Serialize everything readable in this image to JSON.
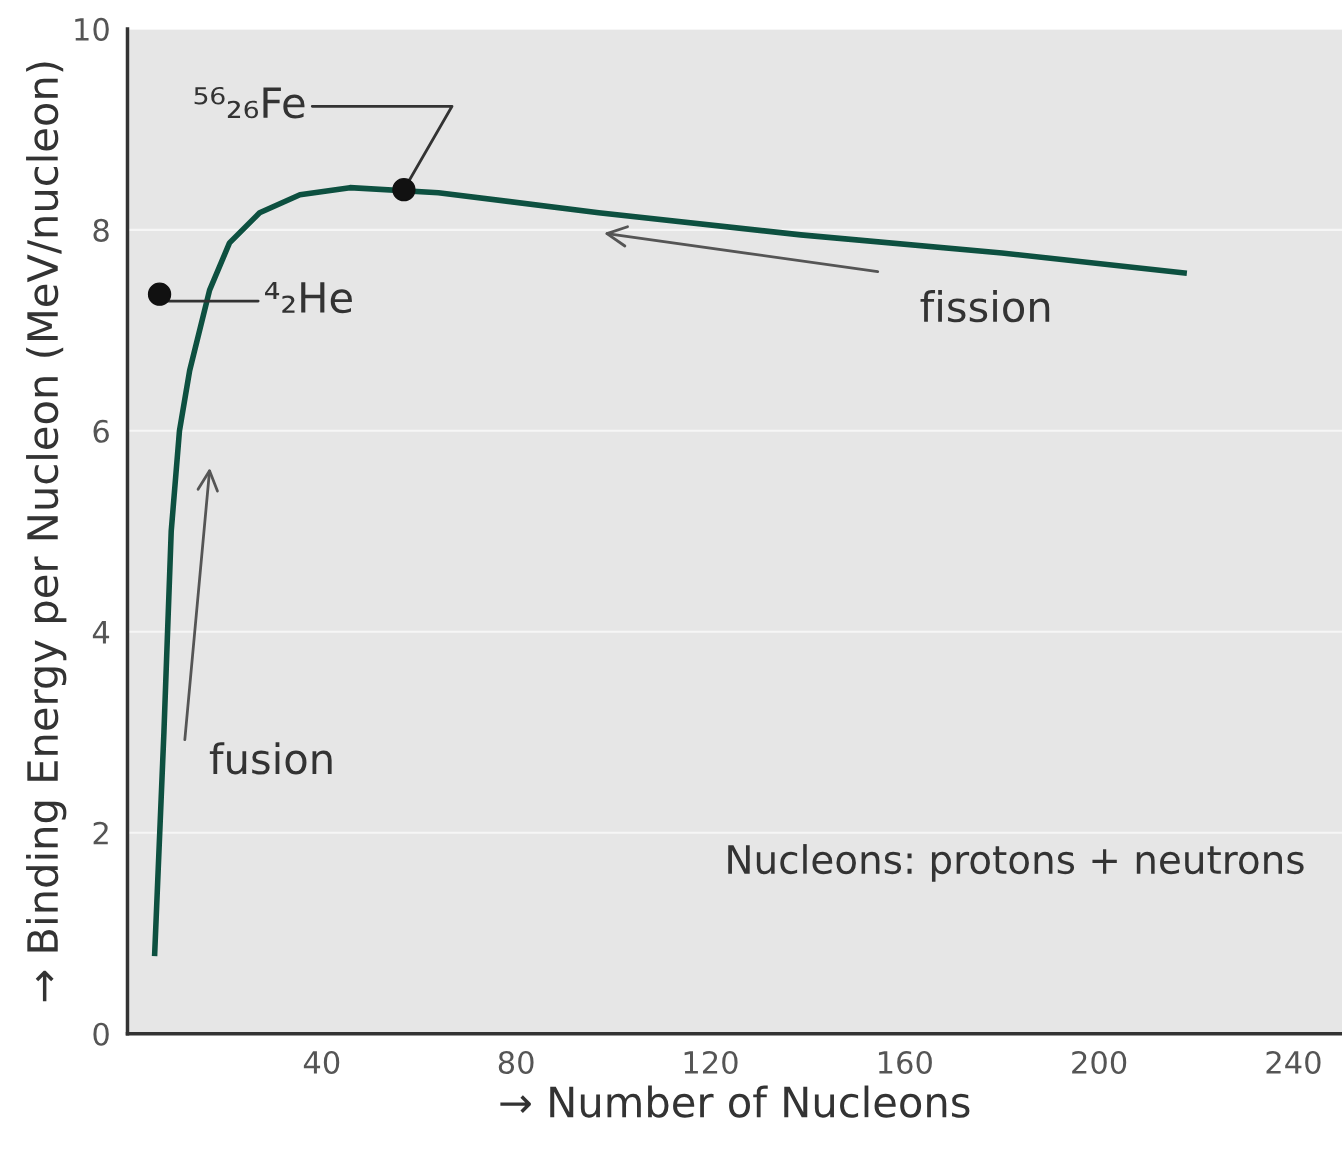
{
  "chart_data": {
    "type": "line",
    "xlabel": "→ Number of Nucleons",
    "ylabel": "→ Binding Energy per Nucleon (MeV/nucleon)",
    "xlim": [
      0,
      250
    ],
    "ylim": [
      0,
      10
    ],
    "xticks": [
      40,
      80,
      120,
      160,
      200,
      240
    ],
    "yticks": [
      0,
      2,
      4,
      6,
      8,
      10
    ],
    "grid": "y",
    "series": [
      {
        "color": "#0d5040",
        "x": [
          5.6,
          7.5,
          9.0,
          10.7,
          12.8,
          16.9,
          21,
          27.2,
          35.5,
          45.8,
          64,
          97,
          138.6,
          180,
          217.5
        ],
        "values": [
          0.8,
          3.0,
          5.0,
          6.0,
          6.6,
          7.4,
          7.87,
          8.17,
          8.35,
          8.42,
          8.37,
          8.17,
          7.95,
          7.77,
          7.57
        ]
      },
      {
        "type": "scatter",
        "color": "#111111",
        "marker": "circle",
        "x": [
          6.6,
          56.9
        ],
        "values": [
          7.36,
          8.4
        ]
      }
    ],
    "annotations": [
      {
        "text": "⁴₂He",
        "x": 6.6,
        "y": 7.36
      },
      {
        "text": "⁵⁶₂₆Fe",
        "x": 56.9,
        "y": 8.4
      },
      "fission",
      "fusion",
      "Nucleons: protons + neutrons"
    ]
  }
}
